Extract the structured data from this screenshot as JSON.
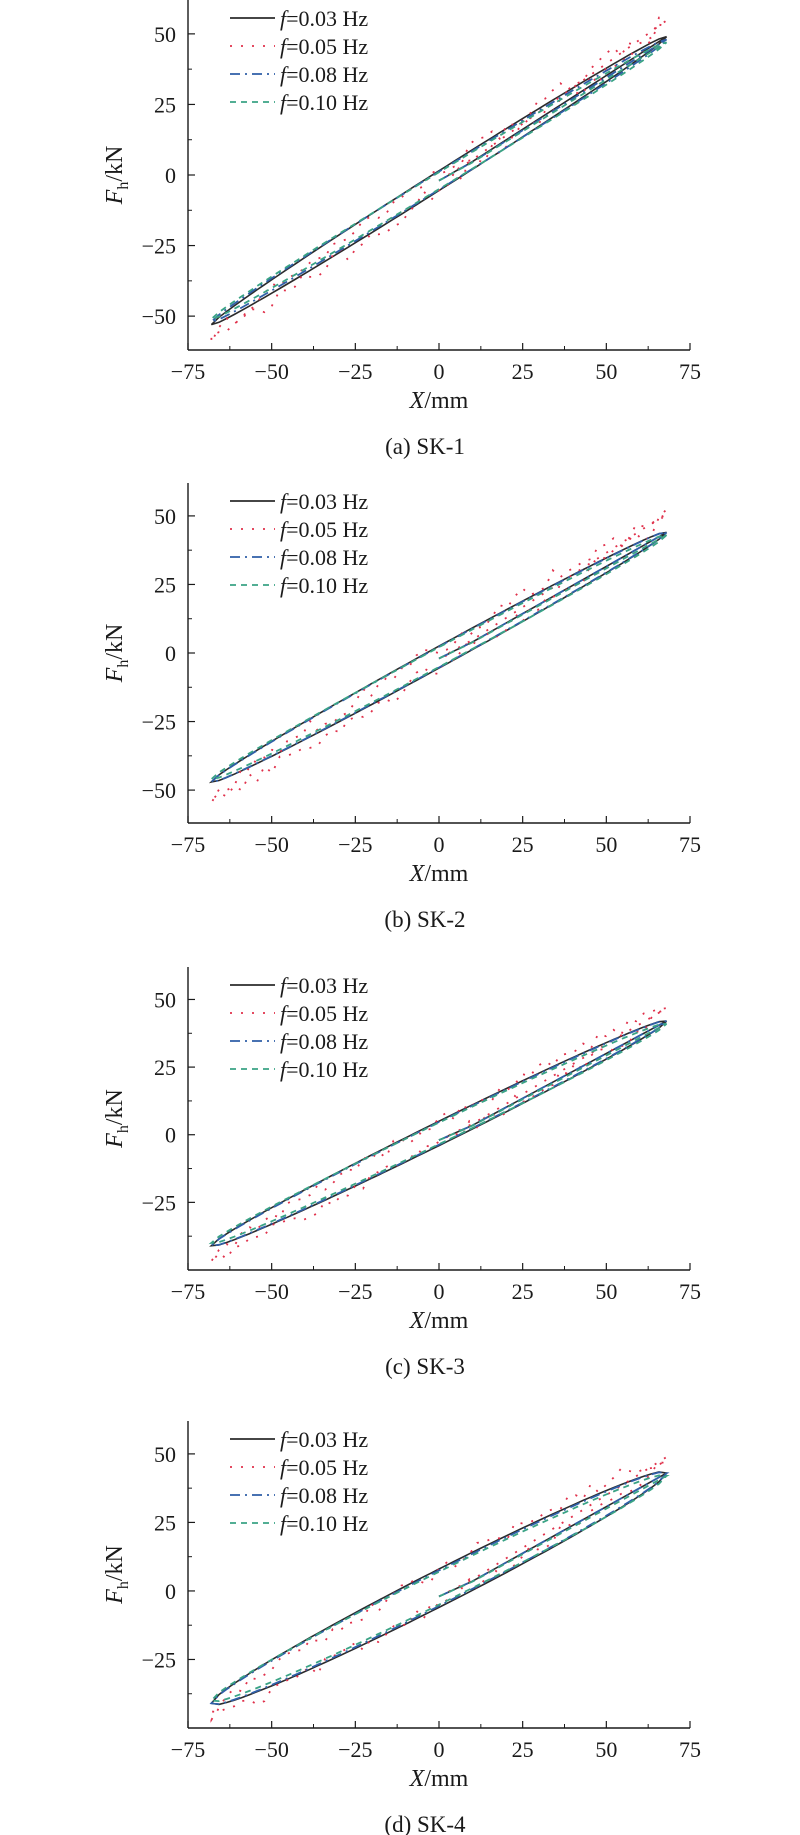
{
  "figure": {
    "legend_prefix": "f",
    "legend_unit_suffix": "=",
    "x_axis_label": {
      "italic": "X",
      "unit": "/mm"
    },
    "y_axis_label": {
      "italic": "F",
      "sub": "h",
      "unit": "/kN"
    },
    "series_styles": [
      {
        "color": "#2b2b2b",
        "dash": ""
      },
      {
        "color": "#e0314b",
        "dash": "2,9"
      },
      {
        "color": "#2f5fa8",
        "dash": "10,5,2,5"
      },
      {
        "color": "#3aa385",
        "dash": "6,5"
      }
    ]
  },
  "chart_data": [
    {
      "type": "line",
      "caption": "(a) SK-1",
      "xlabel": "X/mm",
      "ylabel": "Fh/kN",
      "xlim": [
        -75,
        75
      ],
      "ylim": [
        -62,
        62
      ],
      "xticks": [
        -75,
        -50,
        -25,
        0,
        25,
        50,
        75
      ],
      "yticks": [
        -50,
        -25,
        0,
        25,
        50
      ],
      "xticklabels": [
        "−75",
        "−50",
        "−25",
        "0",
        "25",
        "50",
        "75"
      ],
      "yticklabels": [
        "−50",
        "−25",
        "0",
        "25",
        "50"
      ],
      "legend_position": "top-left",
      "series": [
        {
          "name": "0.03 Hz",
          "legend_label": "0.03 Hz",
          "peak_force": 49,
          "trough_force": -53,
          "loop_half_width": 3.5,
          "noise": 0
        },
        {
          "name": "0.05 Hz",
          "legend_label": "0.05 Hz",
          "peak_force": 54,
          "trough_force": -58,
          "loop_half_width": 3.0,
          "noise": 3.0
        },
        {
          "name": "0.08 Hz",
          "legend_label": "0.08 Hz",
          "peak_force": 48,
          "trough_force": -52,
          "loop_half_width": 3.2,
          "noise": 0
        },
        {
          "name": "0.10 Hz",
          "legend_label": "0.10 Hz",
          "peak_force": 47,
          "trough_force": -51,
          "loop_half_width": 3.0,
          "noise": 0
        }
      ]
    },
    {
      "type": "line",
      "caption": "(b) SK-2",
      "xlabel": "X/mm",
      "ylabel": "Fh/kN",
      "xlim": [
        -75,
        75
      ],
      "ylim": [
        -62,
        62
      ],
      "xticks": [
        -75,
        -50,
        -25,
        0,
        25,
        50,
        75
      ],
      "yticks": [
        -50,
        -25,
        0,
        25,
        50
      ],
      "xticklabels": [
        "−75",
        "−50",
        "−25",
        "0",
        "25",
        "50",
        "75"
      ],
      "yticklabels": [
        "−50",
        "−25",
        "0",
        "25",
        "50"
      ],
      "legend_position": "top-left",
      "series": [
        {
          "name": "0.03 Hz",
          "legend_label": "0.03 Hz",
          "peak_force": 44,
          "trough_force": -47,
          "loop_half_width": 4.0,
          "noise": 0
        },
        {
          "name": "0.05 Hz",
          "legend_label": "0.05 Hz",
          "peak_force": 50,
          "trough_force": -53,
          "loop_half_width": 3.5,
          "noise": 3.0
        },
        {
          "name": "0.08 Hz",
          "legend_label": "0.08 Hz",
          "peak_force": 44,
          "trough_force": -47,
          "loop_half_width": 3.8,
          "noise": 0
        },
        {
          "name": "0.10 Hz",
          "legend_label": "0.10 Hz",
          "peak_force": 43,
          "trough_force": -46,
          "loop_half_width": 3.6,
          "noise": 0
        }
      ]
    },
    {
      "type": "line",
      "caption": "(c) SK-3",
      "xlabel": "X/mm",
      "ylabel": "Fh/kN",
      "xlim": [
        -75,
        75
      ],
      "ylim": [
        -50,
        62
      ],
      "xticks": [
        -75,
        -50,
        -25,
        0,
        25,
        50,
        75
      ],
      "yticks": [
        -25,
        0,
        25,
        50
      ],
      "xticklabels": [
        "−75",
        "−50",
        "−25",
        "0",
        "25",
        "50",
        "75"
      ],
      "yticklabels": [
        "−25",
        "0",
        "25",
        "50"
      ],
      "legend_position": "top-left",
      "series": [
        {
          "name": "0.03 Hz",
          "legend_label": "0.03 Hz",
          "peak_force": 42,
          "trough_force": -41,
          "loop_half_width": 4.5,
          "noise": 0
        },
        {
          "name": "0.05 Hz",
          "legend_label": "0.05 Hz",
          "peak_force": 46,
          "trough_force": -45,
          "loop_half_width": 4.0,
          "noise": 2.5
        },
        {
          "name": "0.08 Hz",
          "legend_label": "0.08 Hz",
          "peak_force": 42,
          "trough_force": -41,
          "loop_half_width": 4.2,
          "noise": 0
        },
        {
          "name": "0.10 Hz",
          "legend_label": "0.10 Hz",
          "peak_force": 41,
          "trough_force": -40,
          "loop_half_width": 4.0,
          "noise": 0
        }
      ]
    },
    {
      "type": "line",
      "caption": "(d) SK-4",
      "xlabel": "X/mm",
      "ylabel": "Fh/kN",
      "xlim": [
        -75,
        75
      ],
      "ylim": [
        -50,
        62
      ],
      "xticks": [
        -75,
        -50,
        -25,
        0,
        25,
        50,
        75
      ],
      "yticks": [
        -25,
        0,
        25,
        50
      ],
      "xticklabels": [
        "−75",
        "−50",
        "−25",
        "0",
        "25",
        "50",
        "75"
      ],
      "yticklabels": [
        "−25",
        "0",
        "25",
        "50"
      ],
      "legend_position": "top-left",
      "series": [
        {
          "name": "0.03 Hz",
          "legend_label": "0.03 Hz",
          "peak_force": 43,
          "trough_force": -41,
          "loop_half_width": 7.0,
          "noise": 0
        },
        {
          "name": "0.05 Hz",
          "legend_label": "0.05 Hz",
          "peak_force": 48,
          "trough_force": -45,
          "loop_half_width": 6.0,
          "noise": 2.5
        },
        {
          "name": "0.08 Hz",
          "legend_label": "0.08 Hz",
          "peak_force": 43,
          "trough_force": -41,
          "loop_half_width": 6.5,
          "noise": 0
        },
        {
          "name": "0.10 Hz",
          "legend_label": "0.10 Hz",
          "peak_force": 42,
          "trough_force": -40,
          "loop_half_width": 6.0,
          "noise": 0
        }
      ]
    }
  ]
}
